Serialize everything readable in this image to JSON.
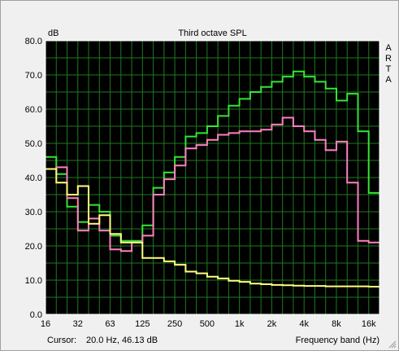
{
  "chart_data": {
    "type": "line",
    "title": "Third octave SPL",
    "ylabel": "dB",
    "xlabel": "Frequency band (Hz)",
    "side_label": [
      "A",
      "R",
      "T",
      "A"
    ],
    "ylim": [
      0,
      80
    ],
    "yticks": [
      "0.0",
      "10.0",
      "20.0",
      "30.0",
      "40.0",
      "50.0",
      "60.0",
      "70.0",
      "80.0"
    ],
    "xticks": [
      "16",
      "32",
      "63",
      "125",
      "250",
      "500",
      "1k",
      "2k",
      "4k",
      "8k",
      "16k"
    ],
    "bands": [
      "16",
      "20",
      "25",
      "31.5",
      "40",
      "50",
      "63",
      "80",
      "100",
      "125",
      "160",
      "200",
      "250",
      "315",
      "400",
      "500",
      "630",
      "800",
      "1k",
      "1.25k",
      "1.6k",
      "2k",
      "2.5k",
      "3.15k",
      "4k",
      "5k",
      "6.3k",
      "8k",
      "10k",
      "12.5k",
      "16k"
    ],
    "grid": true,
    "colors": {
      "background": "#000000",
      "grid": "#1f7a1f",
      "axis_border": "#ffffff"
    },
    "series": [
      {
        "color": "#33e633",
        "values": [
          46,
          41,
          31.5,
          27,
          32,
          30,
          23,
          21.5,
          21.5,
          26,
          37,
          41.5,
          46,
          52,
          53,
          55,
          58,
          61,
          63,
          65,
          66.5,
          68,
          69.5,
          71,
          69.5,
          68,
          66,
          62.5,
          64.5,
          53.5,
          35.5
        ]
      },
      {
        "color": "#ff80c0",
        "values": [
          42.5,
          43,
          34,
          24.5,
          28,
          24.5,
          19,
          18.5,
          21,
          23,
          35,
          39.5,
          43.5,
          48.5,
          49.5,
          51,
          52.5,
          53,
          53.5,
          53.5,
          54,
          55.5,
          57.5,
          55,
          53.5,
          51,
          48,
          50.5,
          38.5,
          21.5,
          21
        ]
      },
      {
        "color": "#ffff80",
        "values": [
          42.5,
          38.5,
          35,
          37.5,
          26.5,
          29,
          23.5,
          21,
          21,
          16.5,
          16.5,
          15.5,
          14.5,
          12.5,
          12,
          11,
          10.5,
          9.8,
          9.5,
          9,
          8.8,
          8.6,
          8.5,
          8.4,
          8.3,
          8.3,
          8.2,
          8.2,
          8.2,
          8.2,
          8.1
        ]
      }
    ]
  },
  "statusbar": {
    "cursor_label": "Cursor:",
    "cursor_value": "20.0 Hz, 46.13 dB",
    "freq_label": "Frequency band (Hz)"
  }
}
